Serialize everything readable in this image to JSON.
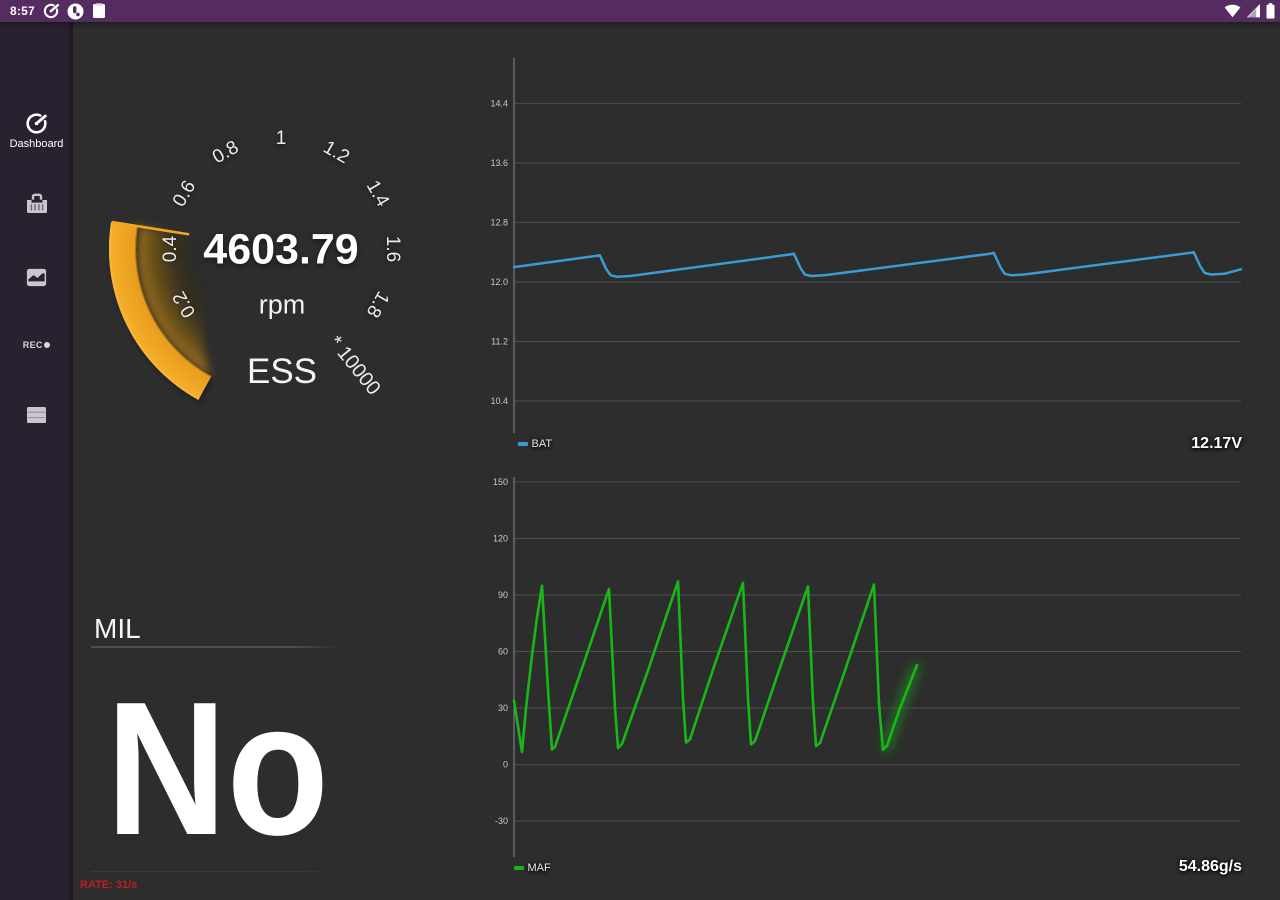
{
  "status_bar": {
    "time": "8:57",
    "bg_color": "#552c60",
    "left_icons": [
      "speedometer-icon",
      "app-notification-icon",
      "note-icon"
    ],
    "right_icons": [
      "wifi-icon",
      "cellular-signal-icon",
      "battery-icon"
    ]
  },
  "sidebar": {
    "bg_color": "#2a2130",
    "items": [
      {
        "id": "dashboard",
        "label": "Dashboard",
        "icon": "gauge-icon",
        "active": true
      },
      {
        "id": "garage",
        "label": "",
        "icon": "toolbox-icon",
        "active": false
      },
      {
        "id": "charts",
        "label": "",
        "icon": "chart-icon",
        "active": false
      },
      {
        "id": "record",
        "label": "REC",
        "icon": "record-dot-icon",
        "active": false
      },
      {
        "id": "table",
        "label": "",
        "icon": "table-icon",
        "active": false
      }
    ]
  },
  "gauge": {
    "value": "4603.79",
    "value_num": 4603.79,
    "unit": "rpm",
    "title": "ESS",
    "multiplier_label": "* 10000",
    "multiplier": 10000,
    "scale_min": 0,
    "scale_max": 2,
    "tick_values": [
      0.2,
      0.4,
      0.6,
      0.8,
      1,
      1.2,
      1.4,
      1.6,
      1.8
    ],
    "tick_labels": [
      "0.2",
      "0.4",
      "0.6",
      "0.8",
      "1",
      "1.2",
      "1.4",
      "1.6",
      "1.8"
    ],
    "arc_color": "#f2a41c"
  },
  "mil": {
    "label": "MIL",
    "value": "No",
    "rate": "RATE: 31/s"
  },
  "chart_data": [
    {
      "type": "line",
      "name": "BAT",
      "unit": "V",
      "display_value": "12.17V",
      "color": "#3a9cd1",
      "ylim": [
        9.97,
        15.01
      ],
      "gridlines": [
        14.4,
        13.6,
        12.8,
        12.0,
        11.2,
        10.4
      ],
      "gridline_labels": [
        "14.4",
        "13.6",
        "12.8",
        "12.0",
        "11.2",
        "10.4"
      ],
      "tip_glow": false,
      "points": [
        [
          0.0,
          12.2
        ],
        [
          0.113,
          12.35
        ],
        [
          0.118,
          12.36
        ],
        [
          0.127,
          12.17
        ],
        [
          0.133,
          12.09
        ],
        [
          0.142,
          12.07
        ],
        [
          0.16,
          12.08
        ],
        [
          0.38,
          12.37
        ],
        [
          0.385,
          12.38
        ],
        [
          0.394,
          12.19
        ],
        [
          0.4,
          12.1
        ],
        [
          0.409,
          12.08
        ],
        [
          0.427,
          12.09
        ],
        [
          0.655,
          12.38
        ],
        [
          0.66,
          12.39
        ],
        [
          0.669,
          12.2
        ],
        [
          0.675,
          12.11
        ],
        [
          0.684,
          12.09
        ],
        [
          0.702,
          12.1
        ],
        [
          0.93,
          12.39
        ],
        [
          0.935,
          12.4
        ],
        [
          0.944,
          12.21
        ],
        [
          0.95,
          12.12
        ],
        [
          0.959,
          12.1
        ],
        [
          0.977,
          12.11
        ],
        [
          1.0,
          12.17
        ]
      ]
    },
    {
      "type": "line",
      "name": "MAF",
      "unit": "g/s",
      "display_value": "54.86g/s",
      "color": "#18b718",
      "ylim": [
        -49,
        152.6
      ],
      "gridlines": [
        150,
        120,
        90,
        60,
        30,
        0,
        -30
      ],
      "gridline_labels": [
        "150",
        "120",
        "90",
        "60",
        "30",
        "0",
        "-30"
      ],
      "tip_glow": true,
      "points": [
        [
          0.0,
          34.0
        ],
        [
          0.011,
          6.7
        ],
        [
          0.0165,
          30.0
        ],
        [
          0.0248,
          58.0
        ],
        [
          0.0316,
          78.0
        ],
        [
          0.0385,
          94.9
        ],
        [
          0.0468,
          40.0
        ],
        [
          0.0523,
          7.9
        ],
        [
          0.0564,
          9.5
        ],
        [
          0.0908,
          48.0
        ],
        [
          0.1307,
          93.2
        ],
        [
          0.1389,
          30.0
        ],
        [
          0.1431,
          8.9
        ],
        [
          0.1486,
          11.0
        ],
        [
          0.1843,
          50.0
        ],
        [
          0.2256,
          97.2
        ],
        [
          0.2325,
          35.0
        ],
        [
          0.2366,
          11.7
        ],
        [
          0.2421,
          13.5
        ],
        [
          0.2751,
          52.0
        ],
        [
          0.315,
          96.4
        ],
        [
          0.3219,
          35.0
        ],
        [
          0.326,
          10.8
        ],
        [
          0.3315,
          12.5
        ],
        [
          0.3645,
          50.0
        ],
        [
          0.4044,
          94.6
        ],
        [
          0.4113,
          33.0
        ],
        [
          0.4154,
          9.9
        ],
        [
          0.4209,
          11.5
        ],
        [
          0.4553,
          50.0
        ],
        [
          0.4952,
          95.5
        ],
        [
          0.5021,
          32.0
        ],
        [
          0.5076,
          7.8
        ],
        [
          0.5131,
          10.0
        ],
        [
          0.531,
          30.0
        ],
        [
          0.5544,
          52.8
        ]
      ]
    }
  ]
}
